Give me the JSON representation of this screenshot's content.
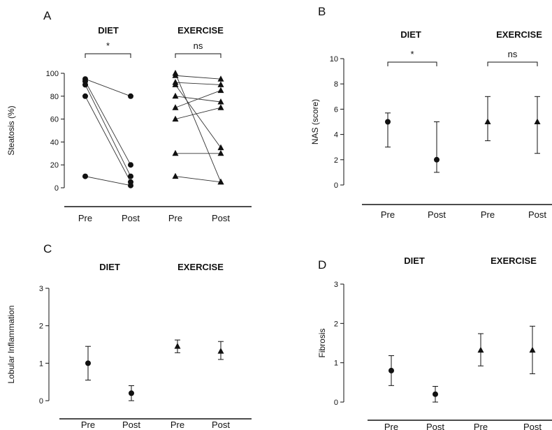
{
  "chart_data": [
    {
      "panel": "A",
      "type": "scatter",
      "ylabel": "Steatosis (%)",
      "ylim": [
        0,
        100
      ],
      "yticks": [
        0,
        20,
        40,
        60,
        80,
        100
      ],
      "categories": [
        "Pre",
        "Post",
        "Pre",
        "Post"
      ],
      "group_labels": [
        "DIET",
        "EXERCISE"
      ],
      "significance": [
        "*",
        "ns"
      ],
      "groups": [
        {
          "name": "DIET",
          "marker": "circle",
          "pairs": [
            [
              95,
              80
            ],
            [
              93,
              20
            ],
            [
              90,
              10
            ],
            [
              80,
              5
            ],
            [
              10,
              2
            ]
          ]
        },
        {
          "name": "EXERCISE",
          "marker": "triangle",
          "pairs": [
            [
              100,
              5
            ],
            [
              98,
              95
            ],
            [
              92,
              90
            ],
            [
              90,
              35
            ],
            [
              80,
              75
            ],
            [
              70,
              85
            ],
            [
              60,
              70
            ],
            [
              30,
              30
            ],
            [
              10,
              5
            ]
          ]
        }
      ]
    },
    {
      "panel": "B",
      "type": "scatter",
      "ylabel": "NAS (score)",
      "ylim": [
        0,
        10
      ],
      "yticks": [
        0,
        2,
        4,
        6,
        8,
        10
      ],
      "categories": [
        "Pre",
        "Post",
        "Pre",
        "Post"
      ],
      "group_labels": [
        "DIET",
        "EXERCISE"
      ],
      "significance": [
        "*",
        "ns"
      ],
      "points": [
        {
          "marker": "circle",
          "value": 5,
          "low": 3,
          "high": 5.7
        },
        {
          "marker": "circle",
          "value": 2,
          "low": 1,
          "high": 5
        },
        {
          "marker": "triangle",
          "value": 5,
          "low": 3.5,
          "high": 7
        },
        {
          "marker": "triangle",
          "value": 5,
          "low": 2.5,
          "high": 7
        }
      ]
    },
    {
      "panel": "C",
      "type": "scatter",
      "ylabel": "Lobular Inflammation",
      "ylim": [
        0,
        3
      ],
      "yticks": [
        0,
        1,
        2,
        3
      ],
      "categories": [
        "Pre",
        "Post",
        "Pre",
        "Post"
      ],
      "group_labels": [
        "DIET",
        "EXERCISE"
      ],
      "significance": [],
      "points": [
        {
          "marker": "circle",
          "value": 1.0,
          "low": 0.55,
          "high": 1.45
        },
        {
          "marker": "circle",
          "value": 0.2,
          "low": 0.0,
          "high": 0.4
        },
        {
          "marker": "triangle",
          "value": 1.45,
          "low": 1.28,
          "high": 1.62
        },
        {
          "marker": "triangle",
          "value": 1.32,
          "low": 1.1,
          "high": 1.58
        }
      ]
    },
    {
      "panel": "D",
      "type": "scatter",
      "ylabel": "Fibrosis",
      "ylim": [
        0,
        3
      ],
      "yticks": [
        0,
        1,
        2,
        3
      ],
      "categories": [
        "Pre",
        "Post",
        "Pre",
        "Post"
      ],
      "group_labels": [
        "DIET",
        "EXERCISE"
      ],
      "significance": [],
      "points": [
        {
          "marker": "circle",
          "value": 0.8,
          "low": 0.42,
          "high": 1.18
        },
        {
          "marker": "circle",
          "value": 0.2,
          "low": 0.0,
          "high": 0.4
        },
        {
          "marker": "triangle",
          "value": 1.32,
          "low": 0.92,
          "high": 1.74
        },
        {
          "marker": "triangle",
          "value": 1.32,
          "low": 0.72,
          "high": 1.93
        }
      ]
    }
  ]
}
